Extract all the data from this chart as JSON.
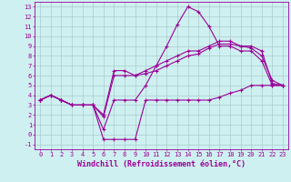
{
  "xlabel": "Windchill (Refroidissement éolien,°C)",
  "background_color": "#cff0f0",
  "line_color": "#990099",
  "grid_color": "#aacccc",
  "xlim": [
    -0.5,
    23.5
  ],
  "ylim": [
    -1.5,
    13.5
  ],
  "xticks": [
    0,
    1,
    2,
    3,
    4,
    5,
    6,
    7,
    8,
    9,
    10,
    11,
    12,
    13,
    14,
    15,
    16,
    17,
    18,
    19,
    20,
    21,
    22,
    23
  ],
  "yticks": [
    -1,
    0,
    1,
    2,
    3,
    4,
    5,
    6,
    7,
    8,
    9,
    10,
    11,
    12,
    13
  ],
  "line1_x": [
    0,
    1,
    2,
    3,
    4,
    5,
    6,
    7,
    8,
    9,
    10,
    11,
    12,
    13,
    14,
    15,
    16,
    17,
    18,
    19,
    20,
    21,
    22,
    23
  ],
  "line1_y": [
    3.5,
    4.0,
    3.5,
    3.0,
    3.0,
    3.0,
    2.0,
    6.5,
    6.5,
    6.0,
    6.2,
    6.5,
    7.0,
    7.5,
    8.0,
    8.2,
    8.8,
    9.2,
    9.2,
    9.0,
    8.8,
    8.0,
    5.5,
    5.0
  ],
  "line2_x": [
    0,
    1,
    2,
    3,
    4,
    5,
    6,
    7,
    8,
    9,
    10,
    11,
    12,
    13,
    14,
    15,
    16,
    17,
    18,
    19,
    20,
    21,
    22,
    23
  ],
  "line2_y": [
    3.5,
    4.0,
    3.5,
    3.0,
    3.0,
    3.0,
    0.5,
    3.5,
    3.5,
    3.5,
    5.0,
    7.0,
    9.0,
    11.2,
    13.0,
    12.5,
    11.0,
    9.0,
    9.0,
    8.5,
    8.5,
    7.5,
    5.0,
    5.0
  ],
  "line3_x": [
    0,
    1,
    2,
    3,
    4,
    5,
    6,
    7,
    8,
    9,
    10,
    11,
    12,
    13,
    14,
    15,
    16,
    17,
    18,
    19,
    20,
    21,
    22,
    23
  ],
  "line3_y": [
    3.5,
    4.0,
    3.5,
    3.0,
    3.0,
    3.0,
    1.8,
    6.0,
    6.0,
    6.0,
    6.5,
    7.0,
    7.5,
    8.0,
    8.5,
    8.5,
    9.0,
    9.5,
    9.5,
    9.0,
    9.0,
    8.5,
    5.2,
    5.0
  ],
  "line4_x": [
    0,
    1,
    2,
    3,
    4,
    5,
    6,
    7,
    8,
    9,
    10,
    11,
    12,
    13,
    14,
    15,
    16,
    17,
    18,
    19,
    20,
    21,
    22,
    23
  ],
  "line4_y": [
    3.5,
    4.0,
    3.5,
    3.0,
    3.0,
    3.0,
    -0.5,
    -0.5,
    -0.5,
    -0.5,
    3.5,
    3.5,
    3.5,
    3.5,
    3.5,
    3.5,
    3.5,
    3.8,
    4.2,
    4.5,
    5.0,
    5.0,
    5.0,
    5.0
  ],
  "marker": "+",
  "markersize": 3,
  "linewidth": 0.8,
  "tick_fontsize": 5,
  "xlabel_fontsize": 6
}
